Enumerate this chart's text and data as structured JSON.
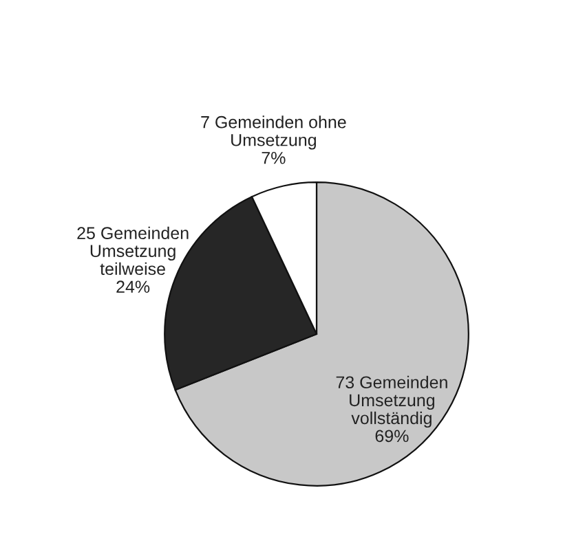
{
  "chart_data": {
    "type": "pie",
    "categories": [
      "73 Gemeinden\nUmsetzung\nvollständig",
      "25 Gemeinden\nUmsetzung\nteilweise",
      "7 Gemeinden ohne\nUmsetzung"
    ],
    "values": [
      69,
      24,
      7
    ],
    "value_labels": [
      "69%",
      "24%",
      "7%"
    ],
    "colors": [
      "#c8c8c8",
      "#262626",
      "#ffffff"
    ],
    "legend": false
  }
}
